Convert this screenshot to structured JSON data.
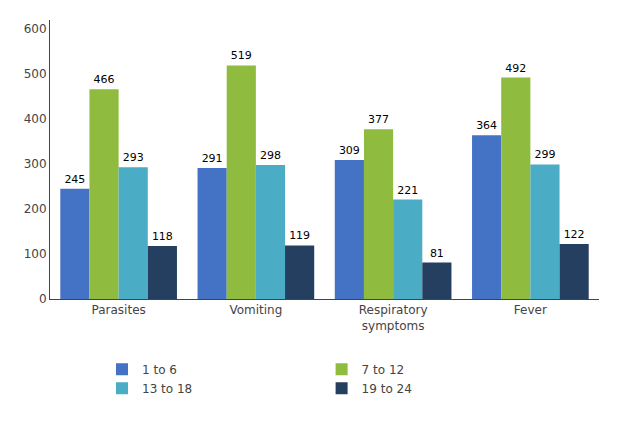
{
  "chart_data": {
    "type": "bar",
    "categories": [
      "Parasites",
      "Vomiting",
      "Respiratory\nsymptoms",
      "Fever"
    ],
    "series": [
      {
        "name": "1 to 6",
        "color": "#4472c4",
        "values": [
          245,
          291,
          309,
          364
        ]
      },
      {
        "name": "7 to 12",
        "color": "#8fbc3f",
        "values": [
          466,
          519,
          377,
          492
        ]
      },
      {
        "name": "13 to 18",
        "color": "#4bacc6",
        "values": [
          293,
          298,
          221,
          299
        ]
      },
      {
        "name": "19 to 24",
        "color": "#243f60",
        "values": [
          118,
          119,
          81,
          122
        ]
      }
    ],
    "ylim": [
      0,
      620
    ],
    "yticks": [
      0,
      100,
      200,
      300,
      400,
      500,
      600
    ],
    "grid": false,
    "data_labels": true,
    "legend": "bottom"
  }
}
